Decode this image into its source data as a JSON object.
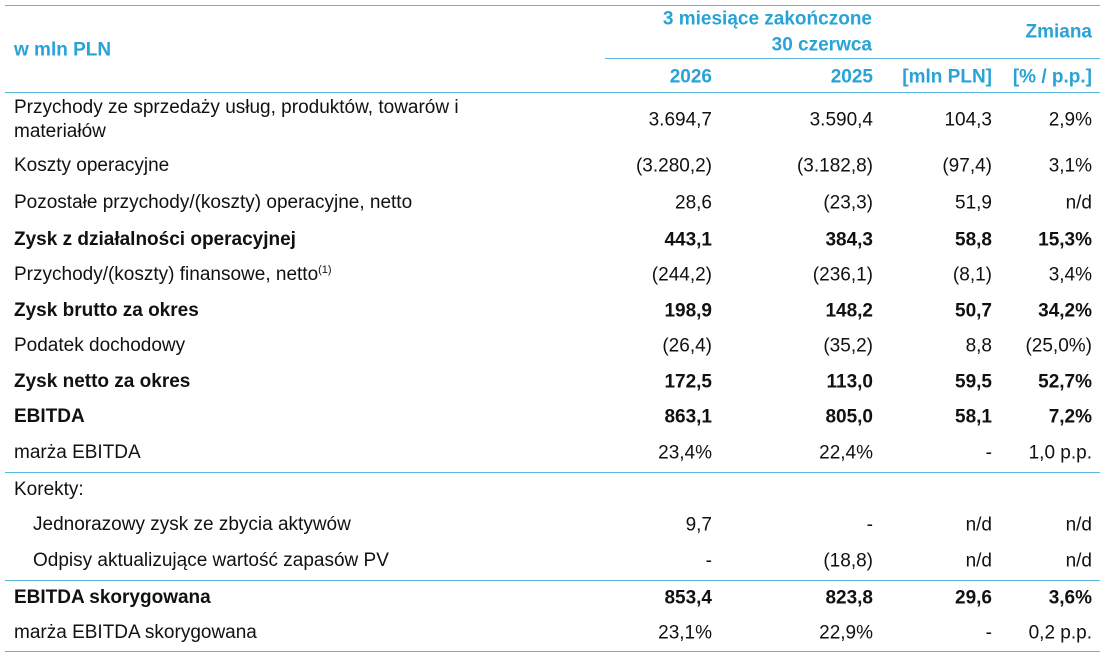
{
  "header": {
    "unit": "w mln PLN",
    "period_lines": [
      "3 miesiące zakończone",
      "30 czerwca"
    ],
    "change": "Zmiana",
    "columns": [
      "2026",
      "2025",
      "[mln PLN]",
      "[% / p.p.]"
    ]
  },
  "table": {
    "rows": [
      {
        "label": "Przychody ze sprzedaży usług, produktów, towarów i materiałów",
        "values": [
          "3.694,7",
          "3.590,4",
          "104,3",
          "2,9%"
        ]
      },
      {
        "label": "Koszty operacyjne",
        "values": [
          "(3.280,2)",
          "(3.182,8)",
          "(97,4)",
          "3,1%"
        ]
      },
      {
        "label": "Pozostałe przychody/(koszty) operacyjne, netto",
        "values": [
          "28,6",
          "(23,3)",
          "51,9",
          "n/d"
        ]
      },
      {
        "label": "Zysk z działalności operacyjnej",
        "values": [
          "443,1",
          "384,3",
          "58,8",
          "15,3%"
        ],
        "bold": true
      },
      {
        "label": "Przychody/(koszty) finansowe, netto",
        "note": "(1)",
        "values": [
          "(244,2)",
          "(236,1)",
          "(8,1)",
          "3,4%"
        ]
      },
      {
        "label": "Zysk brutto za okres",
        "values": [
          "198,9",
          "148,2",
          "50,7",
          "34,2%"
        ],
        "bold": true
      },
      {
        "label": "Podatek dochodowy",
        "values": [
          "(26,4)",
          "(35,2)",
          "8,8",
          "(25,0%)"
        ]
      },
      {
        "label": "Zysk netto za okres",
        "values": [
          "172,5",
          "113,0",
          "59,5",
          "52,7%"
        ],
        "bold": true
      },
      {
        "label": "EBITDA",
        "values": [
          "863,1",
          "805,0",
          "58,1",
          "7,2%"
        ],
        "bold": true
      },
      {
        "label": "marża EBITDA",
        "values": [
          "23,4%",
          "22,4%",
          "-",
          "1,0 p.p."
        ]
      },
      {
        "label": "Korekty:"
      },
      {
        "label": "Jednorazowy zysk ze zbycia aktywów",
        "values": [
          "9,7",
          "-",
          "n/d",
          "n/d"
        ],
        "indent": true
      },
      {
        "label": "Odpisy aktualizujące wartość zapasów PV",
        "values": [
          "-",
          "(18,8)",
          "n/d",
          "n/d"
        ],
        "indent": true
      },
      {
        "label": "EBITDA skorygowana",
        "values": [
          "853,4",
          "823,8",
          "29,6",
          "3,6%"
        ],
        "bold": true
      },
      {
        "label": "marża EBITDA skorygowana",
        "values": [
          "23,1%",
          "22,9%",
          "-",
          "0,2 p.p."
        ]
      }
    ]
  }
}
